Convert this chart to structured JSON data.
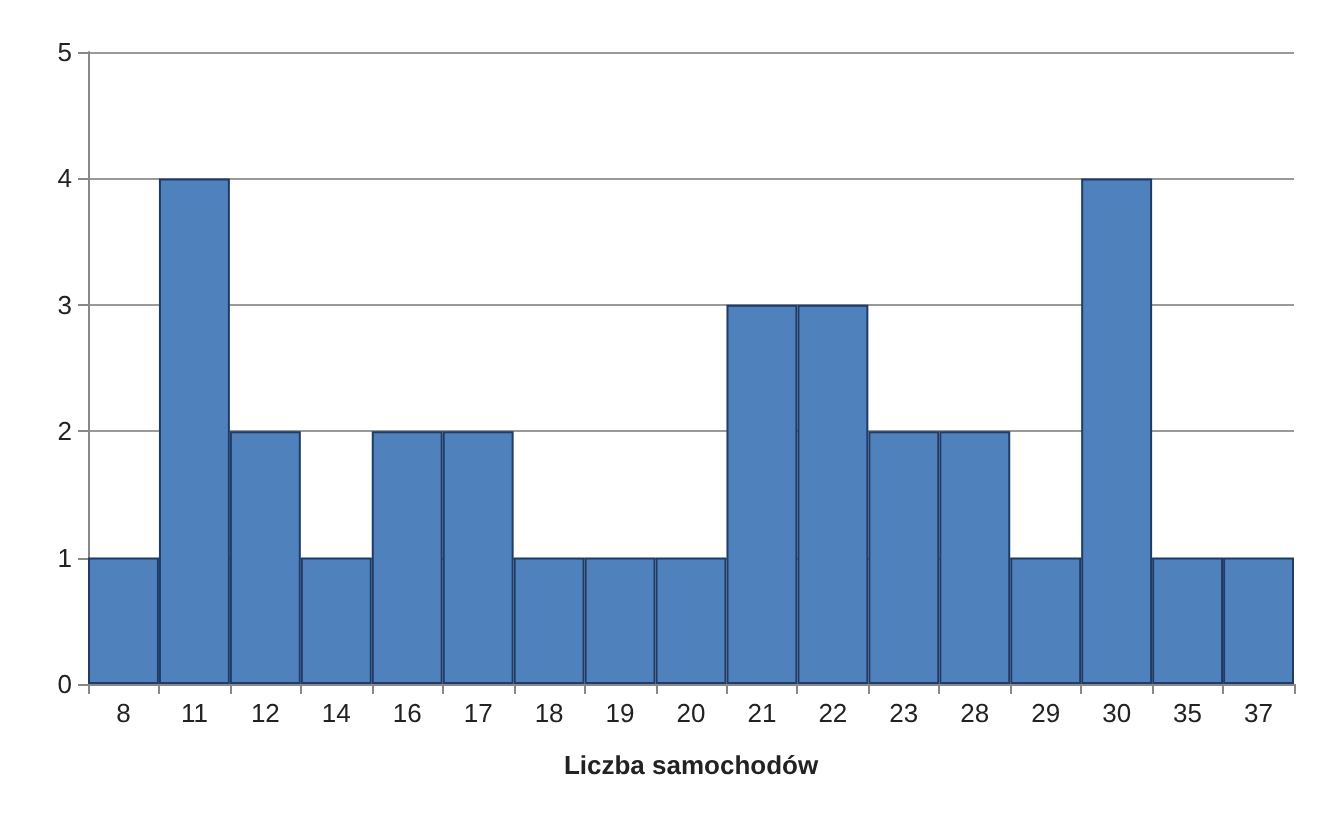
{
  "chart_data": {
    "type": "bar",
    "xlabel": "Liczba samochodów",
    "categories": [
      "8",
      "11",
      "12",
      "14",
      "16",
      "17",
      "18",
      "19",
      "20",
      "21",
      "22",
      "23",
      "28",
      "29",
      "30",
      "35",
      "37"
    ],
    "values": [
      1,
      4,
      2,
      1,
      2,
      2,
      1,
      1,
      1,
      3,
      3,
      2,
      2,
      1,
      4,
      1,
      1
    ],
    "color": "#4f81bd",
    "ylim": [
      0,
      5
    ],
    "yticks": [
      0,
      1,
      2,
      3,
      4,
      5
    ],
    "grid": "y"
  }
}
